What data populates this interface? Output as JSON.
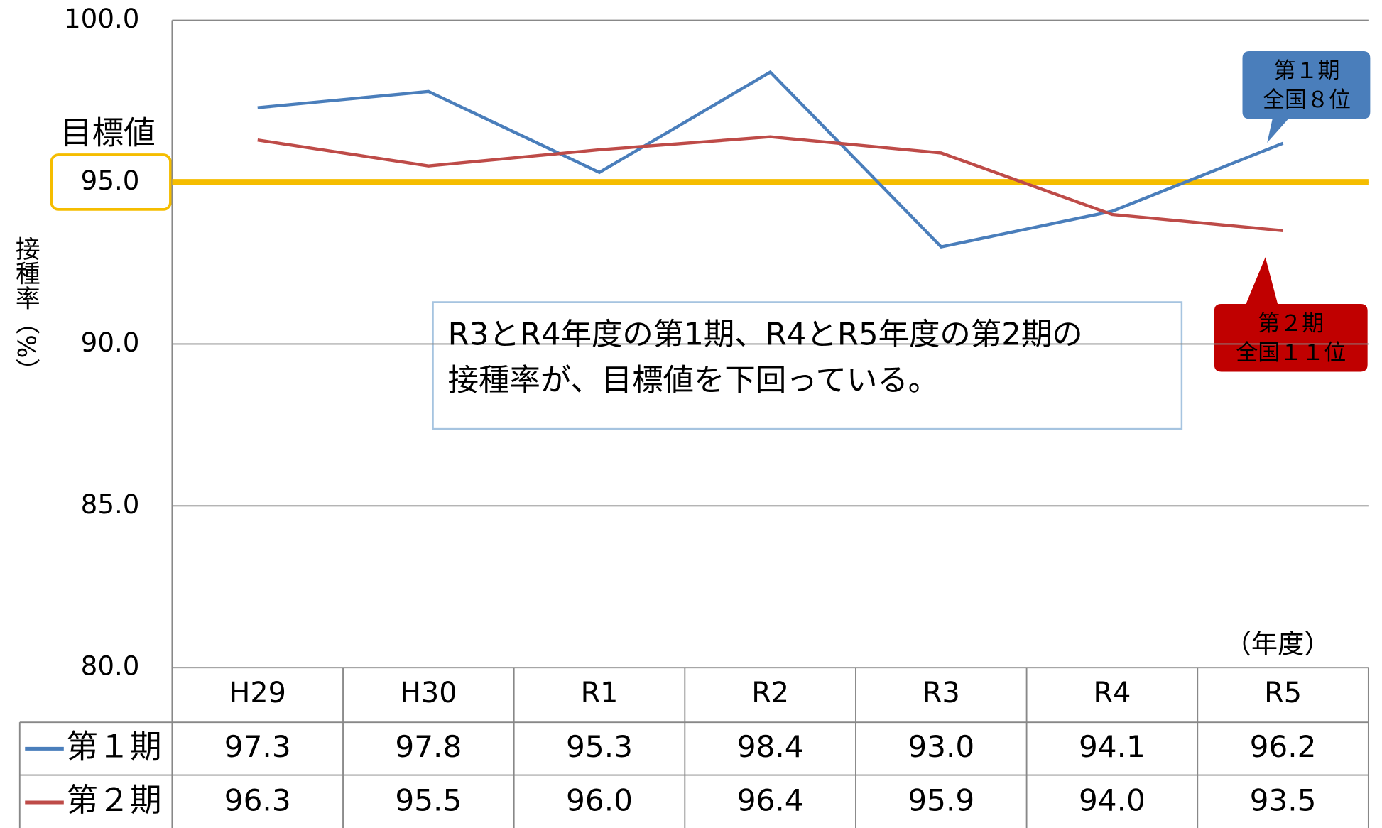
{
  "chart_data": {
    "type": "line",
    "y_label": "接種率（%）",
    "x_unit": "（年度）",
    "categories": [
      "H29",
      "H30",
      "R1",
      "R2",
      "R3",
      "R4",
      "R5"
    ],
    "series": [
      {
        "name": "第１期",
        "color": "#4a7ebb",
        "values": [
          97.3,
          97.8,
          95.3,
          98.4,
          93.0,
          94.1,
          96.2
        ],
        "value_labels": [
          "97.3",
          "97.8",
          "95.3",
          "98.4",
          "93.0",
          "94.1",
          "96.2"
        ]
      },
      {
        "name": "第２期",
        "color": "#be4b48",
        "values": [
          96.3,
          95.5,
          96.0,
          96.4,
          95.9,
          94.0,
          93.5
        ],
        "value_labels": [
          "96.3",
          "95.5",
          "96.0",
          "96.4",
          "95.9",
          "94.0",
          "93.5"
        ]
      }
    ],
    "ylim": [
      80,
      100
    ],
    "yticks": [
      {
        "value": 80,
        "label": "80.0"
      },
      {
        "value": 85,
        "label": "85.0"
      },
      {
        "value": 90,
        "label": "90.0"
      },
      {
        "value": 95,
        "label": "95.0"
      },
      {
        "value": 100,
        "label": "100.0"
      }
    ],
    "grid": true,
    "target": {
      "label": "目標値",
      "value": 95,
      "color": "#f5bd00"
    },
    "annotation": [
      "R3とR4年度の第1期、R4とR5年度の第2期の",
      "接種率が、目標値を下回っている。"
    ],
    "callouts": [
      {
        "lines": [
          "第１期",
          "全国８位"
        ],
        "color": "#4a7ebb"
      },
      {
        "lines": [
          "第２期",
          "全国１１位"
        ],
        "color": "#c00000"
      }
    ]
  }
}
